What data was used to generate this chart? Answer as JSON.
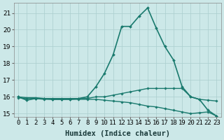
{
  "xlabel": "Humidex (Indice chaleur)",
  "x_values": [
    0,
    1,
    2,
    3,
    4,
    5,
    6,
    7,
    8,
    9,
    10,
    11,
    12,
    13,
    14,
    15,
    16,
    17,
    18,
    19,
    20,
    21,
    22,
    23
  ],
  "lines": [
    {
      "y": [
        16.0,
        15.8,
        15.9,
        15.9,
        15.85,
        15.85,
        15.85,
        15.9,
        16.0,
        16.6,
        17.4,
        18.5,
        20.2,
        20.2,
        20.8,
        21.3,
        20.1,
        19.0,
        18.2,
        16.6,
        16.0,
        15.85,
        15.2,
        14.85
      ],
      "color": "#1a7a6e",
      "linewidth": 1.2,
      "marker": "D",
      "markersize": 2.0
    },
    {
      "y": [
        16.0,
        15.95,
        15.95,
        15.9,
        15.9,
        15.9,
        15.9,
        15.9,
        15.9,
        16.0,
        16.0,
        16.1,
        16.2,
        16.3,
        16.4,
        16.5,
        16.5,
        16.5,
        16.5,
        16.5,
        16.0,
        15.85,
        15.8,
        15.75
      ],
      "color": "#1a7a6e",
      "linewidth": 1.0,
      "marker": "D",
      "markersize": 1.8
    },
    {
      "y": [
        15.95,
        15.9,
        15.9,
        15.85,
        15.85,
        15.85,
        15.85,
        15.85,
        15.85,
        15.85,
        15.8,
        15.75,
        15.7,
        15.65,
        15.55,
        15.45,
        15.4,
        15.3,
        15.2,
        15.1,
        15.0,
        15.05,
        15.1,
        14.85
      ],
      "color": "#1a7a6e",
      "linewidth": 1.0,
      "marker": "D",
      "markersize": 1.8
    }
  ],
  "ylim": [
    14.8,
    21.6
  ],
  "xlim": [
    -0.5,
    23.5
  ],
  "yticks": [
    15,
    16,
    17,
    18,
    19,
    20,
    21
  ],
  "xtick_labels": [
    "0",
    "1",
    "2",
    "3",
    "4",
    "5",
    "6",
    "7",
    "8",
    "9",
    "10",
    "11",
    "12",
    "13",
    "14",
    "15",
    "16",
    "17",
    "18",
    "19",
    "20",
    "21",
    "22",
    "23"
  ],
  "bg_color": "#cce8e8",
  "grid_color": "#aacece",
  "line_color": "#1a7a6e",
  "tick_fontsize": 6.5,
  "label_fontsize": 7.5
}
